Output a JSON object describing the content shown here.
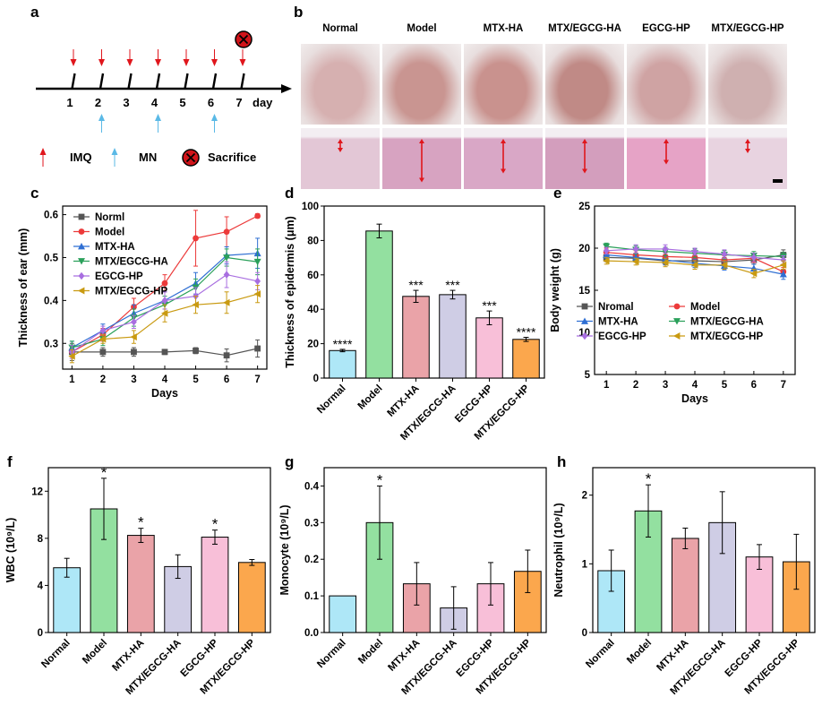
{
  "panel_letters": {
    "a": "a",
    "b": "b",
    "c": "c",
    "d": "d",
    "e": "e",
    "f": "f",
    "g": "g",
    "h": "h"
  },
  "timeline": {
    "day_ticks": [
      "1",
      "2",
      "3",
      "4",
      "5",
      "6",
      "7"
    ],
    "axis_label": "day",
    "imq_days": [
      1,
      2,
      3,
      4,
      5,
      6,
      7
    ],
    "mn_days": [
      2,
      4,
      6
    ],
    "sacrifice_day": 7,
    "legend": {
      "imq": "IMQ",
      "mn": "MN",
      "sacrifice": "Sacrifice"
    },
    "colors": {
      "imq": "#e0161c",
      "mn": "#5ab9e6",
      "sacrifice": "#d0141a"
    }
  },
  "photo_panel": {
    "groups": [
      "Normal",
      "Model",
      "MTX-HA",
      "MTX/EGCG-HA",
      "EGCG-HP",
      "MTX/EGCG-HP"
    ],
    "ear_colors": [
      "#d6b0b0",
      "#c99591",
      "#c9928e",
      "#c08a86",
      "#cfa3a3",
      "#cfb0b0"
    ],
    "histology_colors": [
      "#e3c7d6",
      "#d7a3c1",
      "#d9a7c6",
      "#d39ebd",
      "#e6a3c6",
      "#e8d3e0"
    ],
    "epidermis_thickness_ratio": [
      0.18,
      0.85,
      0.65,
      0.65,
      0.45,
      0.2
    ]
  },
  "chart_data": [
    {
      "id": "c",
      "type": "line",
      "xlabel": "Days",
      "ylabel": "Thickness of ear (mm)",
      "x": [
        1,
        2,
        3,
        4,
        5,
        6,
        7
      ],
      "xlim": [
        0.7,
        7.3
      ],
      "ylim": [
        0.24,
        0.62
      ],
      "yticks": [
        "0.3",
        "0.4",
        "0.5",
        "0.6"
      ],
      "ytick_values": [
        0.3,
        0.4,
        0.5,
        0.6
      ],
      "legend_position": "top-left",
      "series": [
        {
          "name": "Norml",
          "color": "#555555",
          "marker": "square",
          "values": [
            0.28,
            0.28,
            0.28,
            0.28,
            0.283,
            0.272,
            0.288
          ],
          "err": [
            0.02,
            0.01,
            0.01,
            0.006,
            0.007,
            0.015,
            0.02
          ]
        },
        {
          "name": "Model",
          "color": "#ec3a3a",
          "marker": "circle",
          "values": [
            0.28,
            0.32,
            0.385,
            0.44,
            0.545,
            0.56,
            0.597
          ],
          "err": [
            0.015,
            0.015,
            0.02,
            0.02,
            0.065,
            0.035,
            0.005
          ]
        },
        {
          "name": "MTX-HA",
          "color": "#2f6fd3",
          "marker": "triangle-up",
          "values": [
            0.29,
            0.33,
            0.37,
            0.4,
            0.44,
            0.505,
            0.51
          ],
          "err": [
            0.015,
            0.015,
            0.02,
            0.02,
            0.025,
            0.02,
            0.035
          ]
        },
        {
          "name": "MTX/EGCG-HA",
          "color": "#2aa05a",
          "marker": "triangle-down",
          "values": [
            0.29,
            0.31,
            0.36,
            0.39,
            0.43,
            0.5,
            0.49
          ],
          "err": [
            0.015,
            0.015,
            0.02,
            0.02,
            0.02,
            0.02,
            0.03
          ]
        },
        {
          "name": "EGCG-HP",
          "color": "#a86ee0",
          "marker": "diamond",
          "values": [
            0.28,
            0.33,
            0.35,
            0.4,
            0.41,
            0.46,
            0.445
          ],
          "err": [
            0.015,
            0.01,
            0.015,
            0.02,
            0.02,
            0.03,
            0.02
          ]
        },
        {
          "name": "MTX/EGCG-HP",
          "color": "#c99a11",
          "marker": "triangle-left",
          "values": [
            0.27,
            0.31,
            0.315,
            0.37,
            0.39,
            0.395,
            0.415
          ],
          "err": [
            0.015,
            0.01,
            0.015,
            0.02,
            0.02,
            0.025,
            0.02
          ]
        }
      ]
    },
    {
      "id": "d",
      "type": "bar",
      "ylabel": "Thickness of epidermis (μm)",
      "categories": [
        "Normal",
        "Model",
        "MTX-HA",
        "MTX/EGCG-HA",
        "EGCG-HP",
        "MTX/EGCG-HP"
      ],
      "values": [
        16,
        85.5,
        47.5,
        48.5,
        35,
        22.5
      ],
      "err": [
        0.7,
        4,
        3.5,
        2.5,
        4,
        1.2
      ],
      "significance": [
        "****",
        "",
        "***",
        "***",
        "***",
        "****"
      ],
      "colors": [
        "#aee7f7",
        "#93e0a0",
        "#eaa3a8",
        "#cfcde5",
        "#f8bfd8",
        "#fba74d"
      ],
      "ylim": [
        0,
        100
      ],
      "yticks": [
        "0",
        "20",
        "40",
        "60",
        "80",
        "100"
      ],
      "ytick_values": [
        0,
        20,
        40,
        60,
        80,
        100
      ]
    },
    {
      "id": "e",
      "type": "line",
      "xlabel": "Days",
      "ylabel": "Body weight (g)",
      "x": [
        1,
        2,
        3,
        4,
        5,
        6,
        7
      ],
      "xlim": [
        0.6,
        7.4
      ],
      "ylim": [
        5,
        25
      ],
      "yticks": [
        "5",
        "10",
        "15",
        "20",
        "25"
      ],
      "ytick_values": [
        5,
        10,
        15,
        20,
        25
      ],
      "legend_position": "bottom",
      "series": [
        {
          "name": "Nromal",
          "color": "#555555",
          "marker": "square",
          "values": [
            18.9,
            18.8,
            18.5,
            18.5,
            18.4,
            18.6,
            19.2
          ],
          "err": [
            0.5,
            0.4,
            0.5,
            0.5,
            0.5,
            0.5,
            0.6
          ]
        },
        {
          "name": "Model",
          "color": "#ec3a3a",
          "marker": "circle",
          "values": [
            19.5,
            19.2,
            19.0,
            18.9,
            18.6,
            18.8,
            17.2
          ],
          "err": [
            0.5,
            0.5,
            0.5,
            0.4,
            0.5,
            0.5,
            0.5
          ]
        },
        {
          "name": "MTX-HA",
          "color": "#2f6fd3",
          "marker": "triangle-up",
          "values": [
            19.2,
            18.9,
            18.6,
            18.2,
            17.9,
            17.6,
            16.9
          ],
          "err": [
            0.4,
            0.5,
            0.5,
            0.5,
            0.5,
            0.5,
            0.6
          ]
        },
        {
          "name": "MTX/EGCG-HA",
          "color": "#2aa05a",
          "marker": "triangle-down",
          "values": [
            20.2,
            19.8,
            19.6,
            19.4,
            19.2,
            19.1,
            19.0
          ],
          "err": [
            0.4,
            0.5,
            0.5,
            0.5,
            0.5,
            0.5,
            0.5
          ]
        },
        {
          "name": "EGCG-HP",
          "color": "#a86ee0",
          "marker": "diamond",
          "values": [
            19.7,
            19.9,
            19.9,
            19.6,
            19.3,
            18.9,
            18.6
          ],
          "err": [
            0.4,
            0.5,
            0.5,
            0.4,
            0.5,
            0.5,
            0.5
          ]
        },
        {
          "name": "MTX/EGCG-HP",
          "color": "#c99a11",
          "marker": "triangle-left",
          "values": [
            18.5,
            18.4,
            18.3,
            18.0,
            18.0,
            17.0,
            18.0
          ],
          "err": [
            0.4,
            0.4,
            0.5,
            0.5,
            0.5,
            0.5,
            0.5
          ]
        }
      ]
    },
    {
      "id": "f",
      "type": "bar",
      "ylabel": "WBC (10⁹/L)",
      "categories": [
        "Normal",
        "Model",
        "MTX-HA",
        "MTX/EGCG-HA",
        "EGCG-HP",
        "MTX/EGCG-HP"
      ],
      "values": [
        5.5,
        10.5,
        8.25,
        5.6,
        8.1,
        5.95
      ],
      "err": [
        0.8,
        2.6,
        0.6,
        1.0,
        0.6,
        0.25
      ],
      "significance": [
        "",
        "*",
        "*",
        "",
        "*",
        ""
      ],
      "colors": [
        "#aee7f7",
        "#93e0a0",
        "#eaa3a8",
        "#cfcde5",
        "#f8bfd8",
        "#fba74d"
      ],
      "ylim": [
        0,
        14
      ],
      "yticks": [
        "0",
        "4",
        "8",
        "12"
      ],
      "ytick_values": [
        0,
        4,
        8,
        12
      ]
    },
    {
      "id": "g",
      "type": "bar",
      "ylabel": "Monocyte (10⁹/L)",
      "categories": [
        "Normal",
        "Model",
        "MTX-HA",
        "MTX/EGCG-HA",
        "EGCG-HP",
        "MTX/EGCG-HP"
      ],
      "values": [
        0.1,
        0.3,
        0.133,
        0.067,
        0.133,
        0.167
      ],
      "err": [
        0,
        0.1,
        0.058,
        0.058,
        0.058,
        0.058
      ],
      "significance": [
        "",
        "*",
        "",
        "",
        "",
        ""
      ],
      "colors": [
        "#aee7f7",
        "#93e0a0",
        "#eaa3a8",
        "#cfcde5",
        "#f8bfd8",
        "#fba74d"
      ],
      "ylim": [
        0,
        0.45
      ],
      "yticks": [
        "0.0",
        "0.1",
        "0.2",
        "0.3",
        "0.4"
      ],
      "ytick_values": [
        0,
        0.1,
        0.2,
        0.3,
        0.4
      ]
    },
    {
      "id": "h",
      "type": "bar",
      "ylabel": "Neutrophil (10⁹/L)",
      "categories": [
        "Normal",
        "Model",
        "MTX-HA",
        "MTX/EGCG-HA",
        "EGCG-HP",
        "MTX/EGCG-HP"
      ],
      "values": [
        0.9,
        1.77,
        1.37,
        1.6,
        1.1,
        1.03
      ],
      "err": [
        0.3,
        0.38,
        0.15,
        0.45,
        0.18,
        0.4
      ],
      "significance": [
        "",
        "*",
        "",
        "",
        "",
        ""
      ],
      "colors": [
        "#aee7f7",
        "#93e0a0",
        "#eaa3a8",
        "#cfcde5",
        "#f8bfd8",
        "#fba74d"
      ],
      "ylim": [
        0,
        2.4
      ],
      "yticks": [
        "0",
        "1",
        "2"
      ],
      "ytick_values": [
        0,
        1,
        2
      ]
    }
  ]
}
